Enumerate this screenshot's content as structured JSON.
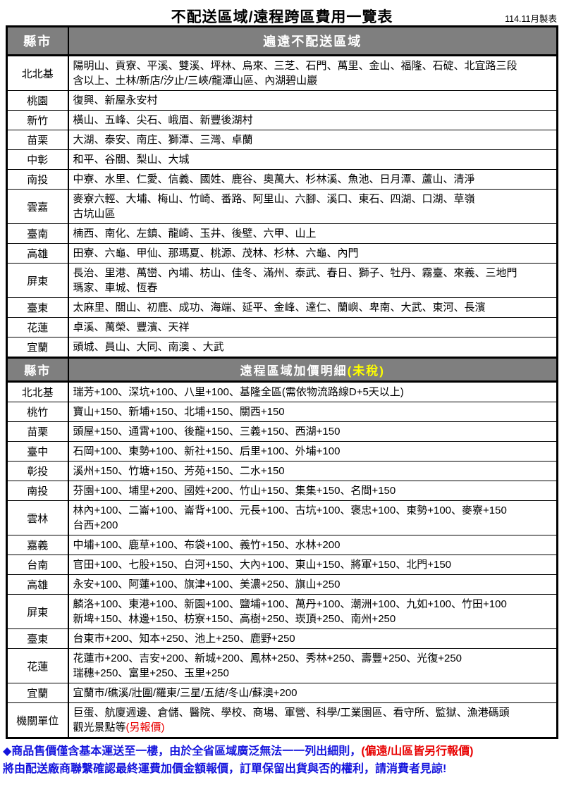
{
  "page": {
    "title": "不配送區域/遠程跨區費用一覽表",
    "date_note": "114.11月製表"
  },
  "colors": {
    "header_bg": "#7f7f7f",
    "header_text": "#ffffff",
    "highlight_yellow": "#ffff00",
    "note_red": "#e80000",
    "footer_blue": "#1414dd"
  },
  "no_delivery_section": {
    "county_header": "縣市",
    "area_header": "遍遠不配送區域",
    "rows": [
      {
        "county": "北北基",
        "areas": "陽明山、貢寮、平溪、雙溪、坪林、烏來、三芝、石門、萬里、金山、福隆、石碇、北宜路三段\n含以上、土林/新店/汐止/三峽/龍潭山區、內湖碧山巖"
      },
      {
        "county": "桃園",
        "areas": "復興、新屋永安村"
      },
      {
        "county": "新竹",
        "areas": "橫山、五峰、尖石、峨眉、新豐後湖村"
      },
      {
        "county": "苗栗",
        "areas": "大湖、泰安、南庄、獅潭、三灣、卓蘭"
      },
      {
        "county": "中彰",
        "areas": "和平、谷關、梨山、大城"
      },
      {
        "county": "南投",
        "areas": "中寮、水里、仁愛、信義、國姓、鹿谷、奧萬大、杉林溪、魚池、日月潭、蘆山、清淨"
      },
      {
        "county": "雲嘉",
        "areas": "麥寮六輕、大埔、梅山、竹崎、番路、阿里山、六腳、溪口、東石、四湖、口湖、草嶺\n古坑山區"
      },
      {
        "county": "臺南",
        "areas": "楠西、南化、左鎮、龍崎、玉井、後壁、六甲、山上"
      },
      {
        "county": "高雄",
        "areas": "田寮、六龜、甲仙、那瑪夏、桃源、茂林、杉林、六龜、內門"
      },
      {
        "county": "屏東",
        "areas": "長治、里港、萬巒、內埔、枋山、佳冬、滿州、泰武、春日、獅子、牡丹、霧臺、來義、三地門\n瑪家、車城、恆春"
      },
      {
        "county": "臺東",
        "areas": "太麻里、關山、初鹿、成功、海端、延平、金峰、達仁、蘭嶼、卑南、大武、東河、長濱"
      },
      {
        "county": "花蓮",
        "areas": "卓溪、萬榮、豐濱、天祥"
      },
      {
        "county": "宜蘭",
        "areas": "頭城、員山、大同、南澳 、大武"
      }
    ]
  },
  "surcharge_section": {
    "county_header": "縣市",
    "area_header_main": "遠程區域加價明細",
    "area_header_note": "(未稅)",
    "rows": [
      {
        "county": "北北基",
        "areas": "瑞芳+100、深坑+100、八里+100、基隆全區(需依物流路線D+5天以上)"
      },
      {
        "county": "桃竹",
        "areas": "寶山+150、新埔+150、北埔+150、關西+150"
      },
      {
        "county": "苗栗",
        "areas": "頭屋+150、通霄+100、後龍+150、三義+150、西湖+150"
      },
      {
        "county": "臺中",
        "areas": "石岡+100、東勢+100、新社+150、后里+100、外埔+100"
      },
      {
        "county": "彰投",
        "areas": "溪州+150、竹塘+150、芳苑+150、二水+150"
      },
      {
        "county": "南投",
        "areas": "芬園+100、埔里+200、國姓+200、竹山+150、集集+150、名間+150"
      },
      {
        "county": "雲林",
        "areas": "林內+100、二崙+100、崙背+100、元長+100、古坑+100、褒忠+100、東勢+100、麥寮+150\n台西+200"
      },
      {
        "county": "嘉義",
        "areas": "中埔+100、鹿草+100、布袋+100、義竹+150、水林+200"
      },
      {
        "county": "台南",
        "areas": "官田+100、七股+150、白河+150、大內+100、東山+150、將軍+150、北門+150"
      },
      {
        "county": "高雄",
        "areas": "永安+100、阿蓮+100、旗津+100、美濃+250、旗山+250"
      },
      {
        "county": "屏東",
        "areas": "麟洛+100、東港+100、新園+100、鹽埔+100、萬丹+100、潮洲+100、九如+100、竹田+100\n新埤+150、林邊+150、枋寮+150、高樹+250、崁頂+250、南州+250"
      },
      {
        "county": "臺東",
        "areas": "台東市+200、知本+250、池上+250、鹿野+250"
      },
      {
        "county": "花蓮",
        "areas": "花蓮市+200、吉安+200、新城+200、鳳林+250、秀林+250、壽豐+250、光復+250\n瑞穗+250、富里+250、玉里+250"
      },
      {
        "county": "宜蘭",
        "areas": "宜蘭市/礁溪/壯圍/羅東/三星/五結/冬山/蘇澳+200"
      },
      {
        "county": "機關單位",
        "areas": "巨蛋、航廈週邊、倉儲、醫院、學校、商場、軍營、科學/工業園區、看守所、監獄、漁港碼頭\n觀光景點等",
        "areas_red": "(另報價)"
      }
    ]
  },
  "footer": {
    "line1_blue": "◆商品售價僅含基本運送至一樓，由於全省區域廣泛無法一一列出細則，",
    "line1_red": "(偏遠/山區皆另行報價)",
    "line2_blue": "將由配送廠商聯繫確認最終運費加價金額報價，訂單保留出貨與否的權利，請消費者見諒!"
  }
}
